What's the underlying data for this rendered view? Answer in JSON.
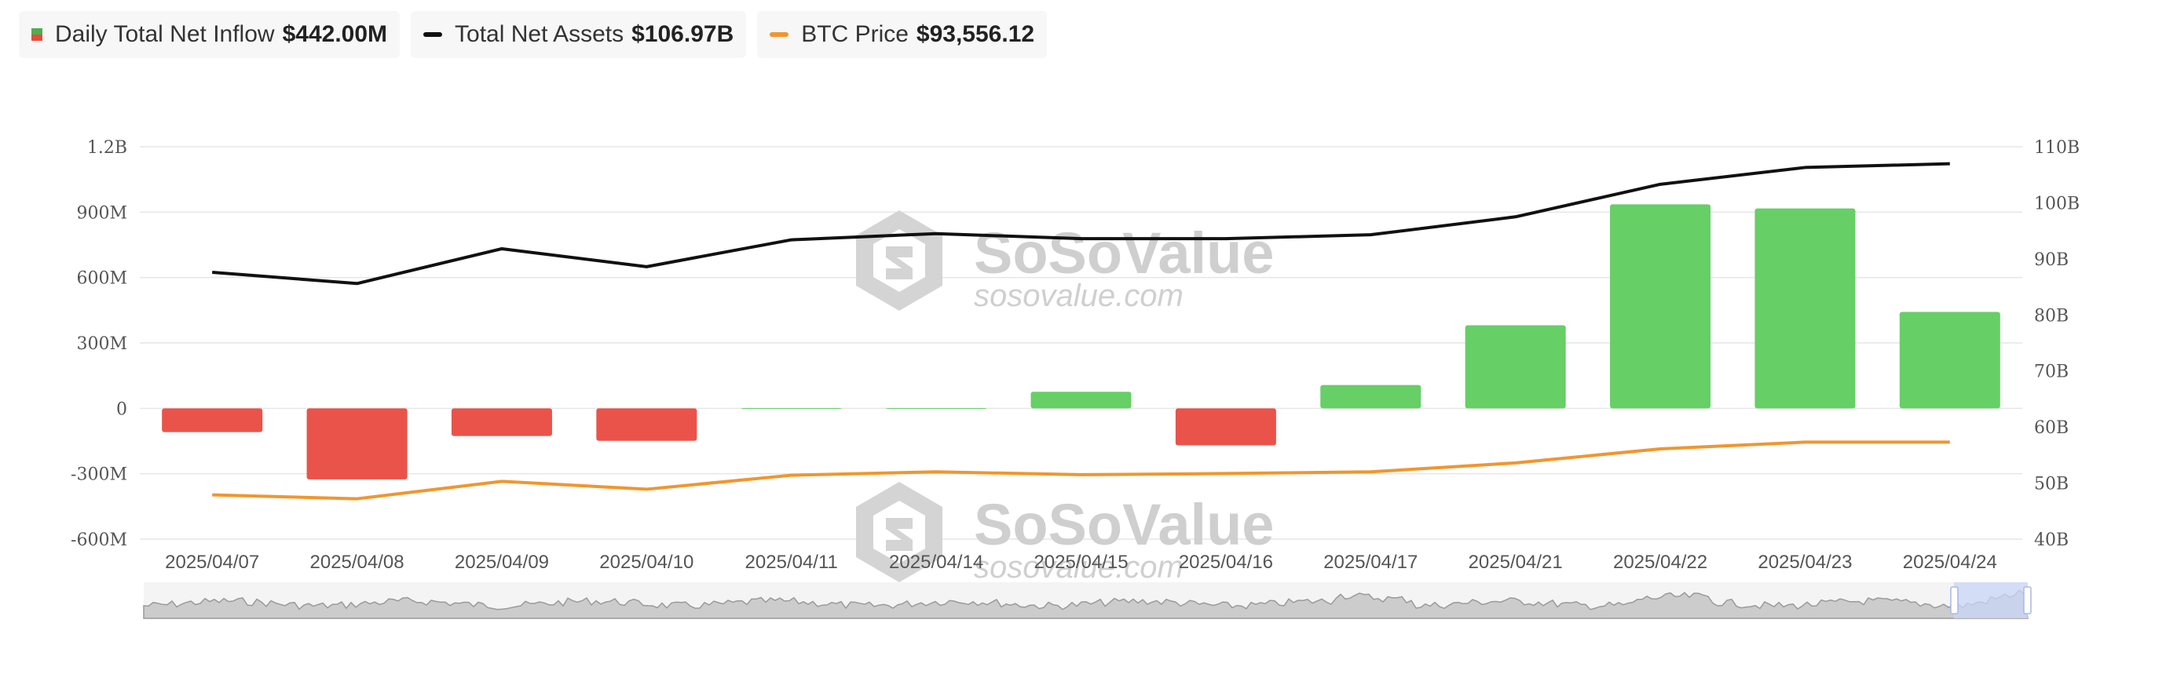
{
  "legend": [
    {
      "label": "Daily Total Net Inflow",
      "value": "$442.00M",
      "symbol": "bar",
      "colors": [
        "#4caf50",
        "#e74c3c"
      ]
    },
    {
      "label": "Total Net Assets",
      "value": "$106.97B",
      "symbol": "line",
      "colors": [
        "#111111"
      ]
    },
    {
      "label": "BTC Price",
      "value": "$93,556.12",
      "symbol": "line",
      "colors": [
        "#f0962e"
      ]
    }
  ],
  "watermark": {
    "brand": "SoSoValue",
    "url": "sosovalue.com"
  },
  "colors": {
    "positive": "#66cf66",
    "negative": "#e9534a",
    "assets_line": "#111111",
    "price_line": "#f0962e",
    "grid": "#e6e6e6",
    "navigator_fill": "#cccccc",
    "navigator_selection": "#c9d6f7"
  },
  "chart_data": {
    "type": "bar",
    "categories": [
      "2025/04/07",
      "2025/04/08",
      "2025/04/09",
      "2025/04/10",
      "2025/04/11",
      "2025/04/14",
      "2025/04/15",
      "2025/04/16",
      "2025/04/17",
      "2025/04/21",
      "2025/04/22",
      "2025/04/23",
      "2025/04/24"
    ],
    "left_axis": {
      "ticks": [
        "1.2B",
        "900M",
        "600M",
        "300M",
        "0",
        "-300M",
        "-600M"
      ],
      "tick_values": [
        1200,
        900,
        600,
        300,
        0,
        -300,
        -600
      ],
      "ylim": [
        -600,
        1200
      ],
      "unit": "M"
    },
    "right_axis": {
      "ticks": [
        "110B",
        "100B",
        "90B",
        "80B",
        "70B",
        "60B",
        "50B",
        "40B"
      ],
      "tick_values": [
        110,
        100,
        90,
        80,
        70,
        60,
        50,
        40
      ],
      "ylim": [
        40,
        110
      ],
      "unit": "B"
    },
    "series": [
      {
        "name": "Daily Total Net Inflow",
        "type": "bar",
        "axis": "left",
        "values": [
          -109,
          -326,
          -127,
          -149,
          1,
          1,
          76,
          -170,
          107,
          381,
          936,
          917,
          442
        ]
      },
      {
        "name": "Total Net Assets",
        "type": "line",
        "axis": "right",
        "values": [
          87.6,
          85.6,
          91.8,
          88.6,
          93.4,
          94.5,
          93.6,
          93.6,
          94.3,
          97.5,
          103.3,
          106.3,
          106.97
        ]
      },
      {
        "name": "BTC Price",
        "type": "line",
        "axis": "right",
        "values": [
          47.9,
          47.2,
          50.3,
          48.9,
          51.4,
          52.0,
          51.5,
          51.7,
          52.0,
          53.6,
          56.1,
          57.3,
          57.3
        ]
      }
    ],
    "grid": true,
    "legend_position": "top-left",
    "navigator": {
      "shown": true,
      "selection": "right-end"
    }
  }
}
